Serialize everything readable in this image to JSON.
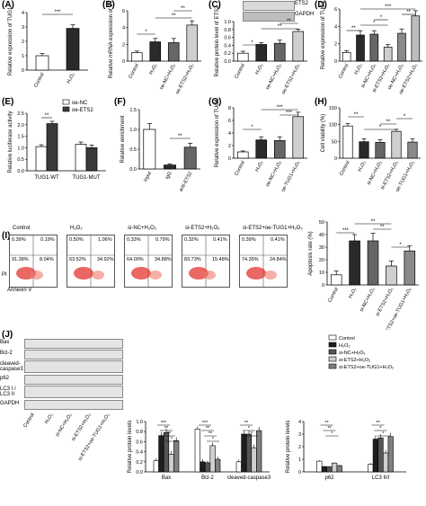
{
  "panels": {
    "A": {
      "label": "(A)",
      "ylabel": "Relative expression of TUG1",
      "categories": [
        "Control",
        "H₂O₂"
      ],
      "values": [
        1.0,
        2.9
      ],
      "errors": [
        0.15,
        0.25
      ],
      "ylim": [
        0,
        4
      ],
      "yticks": [
        "0",
        "1",
        "2",
        "3",
        "4"
      ],
      "sig": [
        "***"
      ]
    },
    "B": {
      "label": "(B)",
      "ylabel": "Relative mRNA expression of ETS2",
      "categories": [
        "Control",
        "H₂O₂",
        "oe-NC+H₂O₂",
        "oe-ETS2+H₂O₂"
      ],
      "values": [
        1.0,
        2.3,
        2.2,
        4.3
      ],
      "errors": [
        0.2,
        0.4,
        0.5,
        0.5
      ],
      "ylim": [
        0,
        6
      ],
      "yticks": [
        "0",
        "2",
        "4",
        "6"
      ],
      "sig": [
        "*",
        "**",
        "**"
      ]
    },
    "C": {
      "label": "(C)",
      "ylabel": "Relative protein level of ETS2",
      "blot_labels": [
        "ETS2",
        "GAPDH"
      ],
      "categories": [
        "Control",
        "H₂O₂",
        "oe-NC+H₂O₂",
        "oe-ETS2+H₂O₂"
      ],
      "values": [
        0.2,
        0.42,
        0.45,
        0.75
      ],
      "errors": [
        0.05,
        0.05,
        0.08,
        0.06
      ],
      "ylim": [
        0,
        1.0
      ],
      "yticks": [
        "0.0",
        "0.2",
        "0.4",
        "0.6",
        "0.8",
        "1.0"
      ],
      "sig": [
        "*",
        "**",
        "**"
      ]
    },
    "D": {
      "label": "(D)",
      "ylabel": "Relative expression of TUG1",
      "categories": [
        "Control",
        "H₂O₂",
        "si-NC+H₂O₂",
        "si-ETS2+H₂O₂",
        "oe-NC+H₂O₂",
        "oe-ETS2+H₂O₂"
      ],
      "values": [
        1.0,
        3.0,
        3.1,
        1.6,
        3.2,
        5.2
      ],
      "errors": [
        0.2,
        0.5,
        0.4,
        0.3,
        0.5,
        0.6
      ],
      "ylim": [
        0,
        6
      ],
      "yticks": [
        "0",
        "2",
        "4",
        "6"
      ],
      "sig": [
        "**",
        "*",
        "*",
        "**",
        "***"
      ]
    },
    "E": {
      "label": "(E)",
      "ylabel": "Relative luciferase activity",
      "categories": [
        "TUG1-WT",
        "TUG1-MUT"
      ],
      "series": [
        {
          "name": "oe-NC",
          "values": [
            1.05,
            1.15
          ],
          "errors": [
            0.08,
            0.1
          ],
          "color": "#ffffff"
        },
        {
          "name": "oe-ETS2",
          "values": [
            2.05,
            1.0
          ],
          "errors": [
            0.1,
            0.12
          ],
          "color": "#3a3a3a"
        }
      ],
      "ylim": [
        0,
        2.5
      ],
      "yticks": [
        "0.0",
        "0.5",
        "1.0",
        "1.5",
        "2.0",
        "2.5"
      ],
      "sig": [
        "**"
      ]
    },
    "F": {
      "label": "(F)",
      "ylabel": "Relative enrichment",
      "categories": [
        "Input",
        "IgG",
        "anti-ETS2"
      ],
      "values": [
        1.0,
        0.1,
        0.55
      ],
      "errors": [
        0.15,
        0.03,
        0.1
      ],
      "ylim": [
        0,
        1.5
      ],
      "yticks": [
        "0.0",
        "0.5",
        "1.0",
        "1.5"
      ],
      "sig": [
        "**"
      ]
    },
    "G": {
      "label": "(G)",
      "ylabel": "Relative expression of TUG1",
      "categories": [
        "Control",
        "H₂O₂",
        "oe-NC+H₂O₂",
        "oe-TUG1+H₂O₂"
      ],
      "values": [
        1.0,
        2.9,
        2.8,
        6.6
      ],
      "errors": [
        0.15,
        0.5,
        0.6,
        0.7
      ],
      "ylim": [
        0,
        8
      ],
      "yticks": [
        "0",
        "2",
        "4",
        "6",
        "8"
      ],
      "sig": [
        "*",
        "***",
        "***"
      ]
    },
    "H": {
      "label": "(H)",
      "ylabel": "Cell viability (%)",
      "categories": [
        "Control",
        "H₂O₂",
        "si-NC+H₂O₂",
        "si-ETS2+H₂O₂",
        "si-ETS2+oe-TUG1+H₂O₂"
      ],
      "values": [
        96,
        49,
        47,
        80,
        48
      ],
      "errors": [
        7,
        9,
        8,
        6,
        9
      ],
      "ylim": [
        0,
        150
      ],
      "yticks": [
        "0",
        "50",
        "100",
        "150"
      ],
      "sig": [
        "**",
        "*",
        "**",
        "*"
      ]
    },
    "I": {
      "label": "(I)",
      "axis_y": "PI",
      "axis_x": "Annexin V",
      "flow": [
        {
          "title": "Control",
          "q": [
            "0.39%",
            "0.19%",
            "91.38%",
            "8.04%"
          ]
        },
        {
          "title": "H₂O₂",
          "q": [
            "0.50%",
            "1.06%",
            "63.52%",
            "34.92%"
          ]
        },
        {
          "title": "si-NC+H₂O₂",
          "q": [
            "0.33%",
            "0.79%",
            "64.00%",
            "34.88%"
          ]
        },
        {
          "title": "si-ETS2+H₂O₂",
          "q": [
            "0.32%",
            "0.41%",
            "83.73%",
            "15.48%"
          ]
        },
        {
          "title": "si-ETS2+oe-TUG1+H₂O₂",
          "q": [
            "0.39%",
            "0.41%",
            "74.35%",
            "24.84%"
          ]
        }
      ],
      "bar": {
        "ylabel": "Apoptosis rate (%)",
        "categories": [
          "Control",
          "H₂O₂",
          "si-NC+H₂O₂",
          "si-ETS2+H₂O₂",
          "si-ETS2+oe-TUG1+H₂O₂"
        ],
        "values": [
          8,
          35,
          35,
          15,
          27
        ],
        "errors": [
          3,
          5,
          6,
          4,
          4
        ],
        "ylim": [
          0,
          50
        ],
        "yticks": [
          "0",
          "10",
          "20",
          "30",
          "40",
          "50"
        ],
        "sig": [
          "***",
          "**",
          "**",
          "*"
        ]
      }
    },
    "J": {
      "label": "(J)",
      "blot_labels": [
        "Bax",
        "Bcl-2",
        "cleaved-caspase3",
        "p62",
        "LC3 I",
        "LC3 II",
        "GAPDH"
      ],
      "lanes": [
        "Control",
        "H₂O₂",
        "si-NC+H₂O₂",
        "si-ETS2+H₂O₂",
        "si-ETS2+oe-TUG1+H₂O₂"
      ],
      "legend": [
        "Control",
        "H₂O₂",
        "si-NC+H₂O₂",
        "si-ETS2+H₂O₂",
        "si-ETS2+oe-TUG1+H₂O₂"
      ],
      "colors": [
        "#ffffff",
        "#1e1e1e",
        "#555555",
        "#cfcfcf",
        "#808080"
      ],
      "left": {
        "ylabel": "Relative protein levels",
        "categories": [
          "Bax",
          "Bcl-2",
          "cleaved-caspase3"
        ],
        "series": [
          [
            0.22,
            0.72,
            0.78,
            0.35,
            0.62
          ],
          [
            0.85,
            0.2,
            0.18,
            0.52,
            0.25
          ],
          [
            0.2,
            0.75,
            0.75,
            0.48,
            0.82
          ]
        ],
        "errors": [
          [
            0.05,
            0.07,
            0.08,
            0.06,
            0.07
          ],
          [
            0.05,
            0.05,
            0.04,
            0.06,
            0.05
          ],
          [
            0.04,
            0.06,
            0.07,
            0.06,
            0.07
          ]
        ],
        "ylim": [
          0,
          1.0
        ],
        "yticks": [
          "0.0",
          "0.2",
          "0.4",
          "0.6",
          "0.8",
          "1.0"
        ],
        "sig": [
          "***",
          "**",
          "**",
          "*",
          "***",
          "**",
          "**",
          "*",
          "**",
          "*",
          "*"
        ]
      },
      "right": {
        "ylabel": "Relative protein levels",
        "categories": [
          "p62",
          "LC3 II/I"
        ],
        "series": [
          [
            0.85,
            0.42,
            0.4,
            0.7,
            0.5
          ],
          [
            0.6,
            2.6,
            2.7,
            1.5,
            2.8
          ]
        ],
        "errors": [
          [
            0.08,
            0.05,
            0.06,
            0.07,
            0.06
          ],
          [
            0.1,
            0.3,
            0.3,
            0.25,
            0.3
          ]
        ],
        "ylim": [
          0,
          4
        ],
        "yticks": [
          "0",
          "1",
          "2",
          "3",
          "4"
        ],
        "sig": [
          "**",
          "**",
          "*",
          "**",
          "*",
          "*"
        ]
      }
    }
  }
}
